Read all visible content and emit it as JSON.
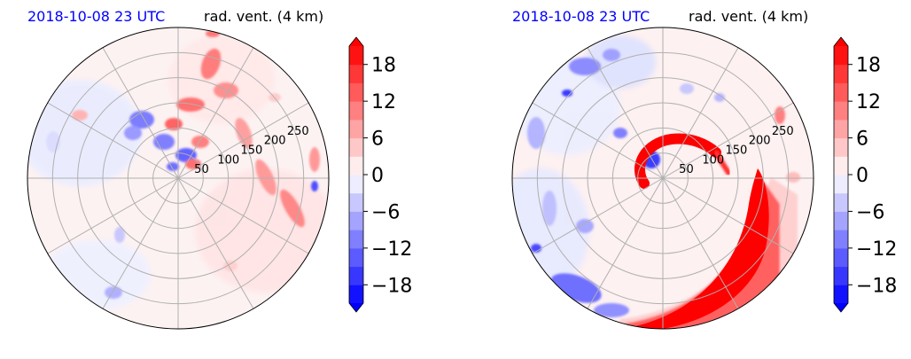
{
  "chart_data": [
    {
      "type": "heatmap",
      "projection": "polar",
      "title_left": "2018-10-08 23 UTC",
      "title_right": "rad. vent. (4 km)",
      "title_left_color": "#0000ff",
      "radial_ticks": [
        "50",
        "100",
        "150",
        "200",
        "250"
      ],
      "radial_values": [
        50,
        100,
        150,
        200,
        250
      ],
      "rlim": [
        0,
        300
      ],
      "angular_grid_deg": 30,
      "grid": true,
      "colorbar": {
        "ticks": [
          "18",
          "12",
          "6",
          "0",
          "−6",
          "−12",
          "−18"
        ],
        "tick_values": [
          18,
          12,
          6,
          0,
          -6,
          -12,
          -18
        ],
        "range": [
          -21,
          21
        ],
        "extend": "both",
        "cmap": "bwr"
      },
      "pattern": "scattered"
    },
    {
      "type": "heatmap",
      "projection": "polar",
      "title_left": "2018-10-08 23 UTC",
      "title_right": "rad. vent. (4 km)",
      "title_left_color": "#0000ff",
      "radial_ticks": [
        "50",
        "100",
        "150",
        "200",
        "250"
      ],
      "radial_values": [
        50,
        100,
        150,
        200,
        250
      ],
      "rlim": [
        0,
        300
      ],
      "angular_grid_deg": 30,
      "grid": true,
      "colorbar": {
        "ticks": [
          "18",
          "12",
          "6",
          "0",
          "−6",
          "−12",
          "−18"
        ],
        "tick_values": [
          18,
          12,
          6,
          0,
          -6,
          -12,
          -18
        ],
        "range": [
          -21,
          21
        ],
        "extend": "both",
        "cmap": "bwr"
      },
      "pattern": "spiral"
    }
  ]
}
